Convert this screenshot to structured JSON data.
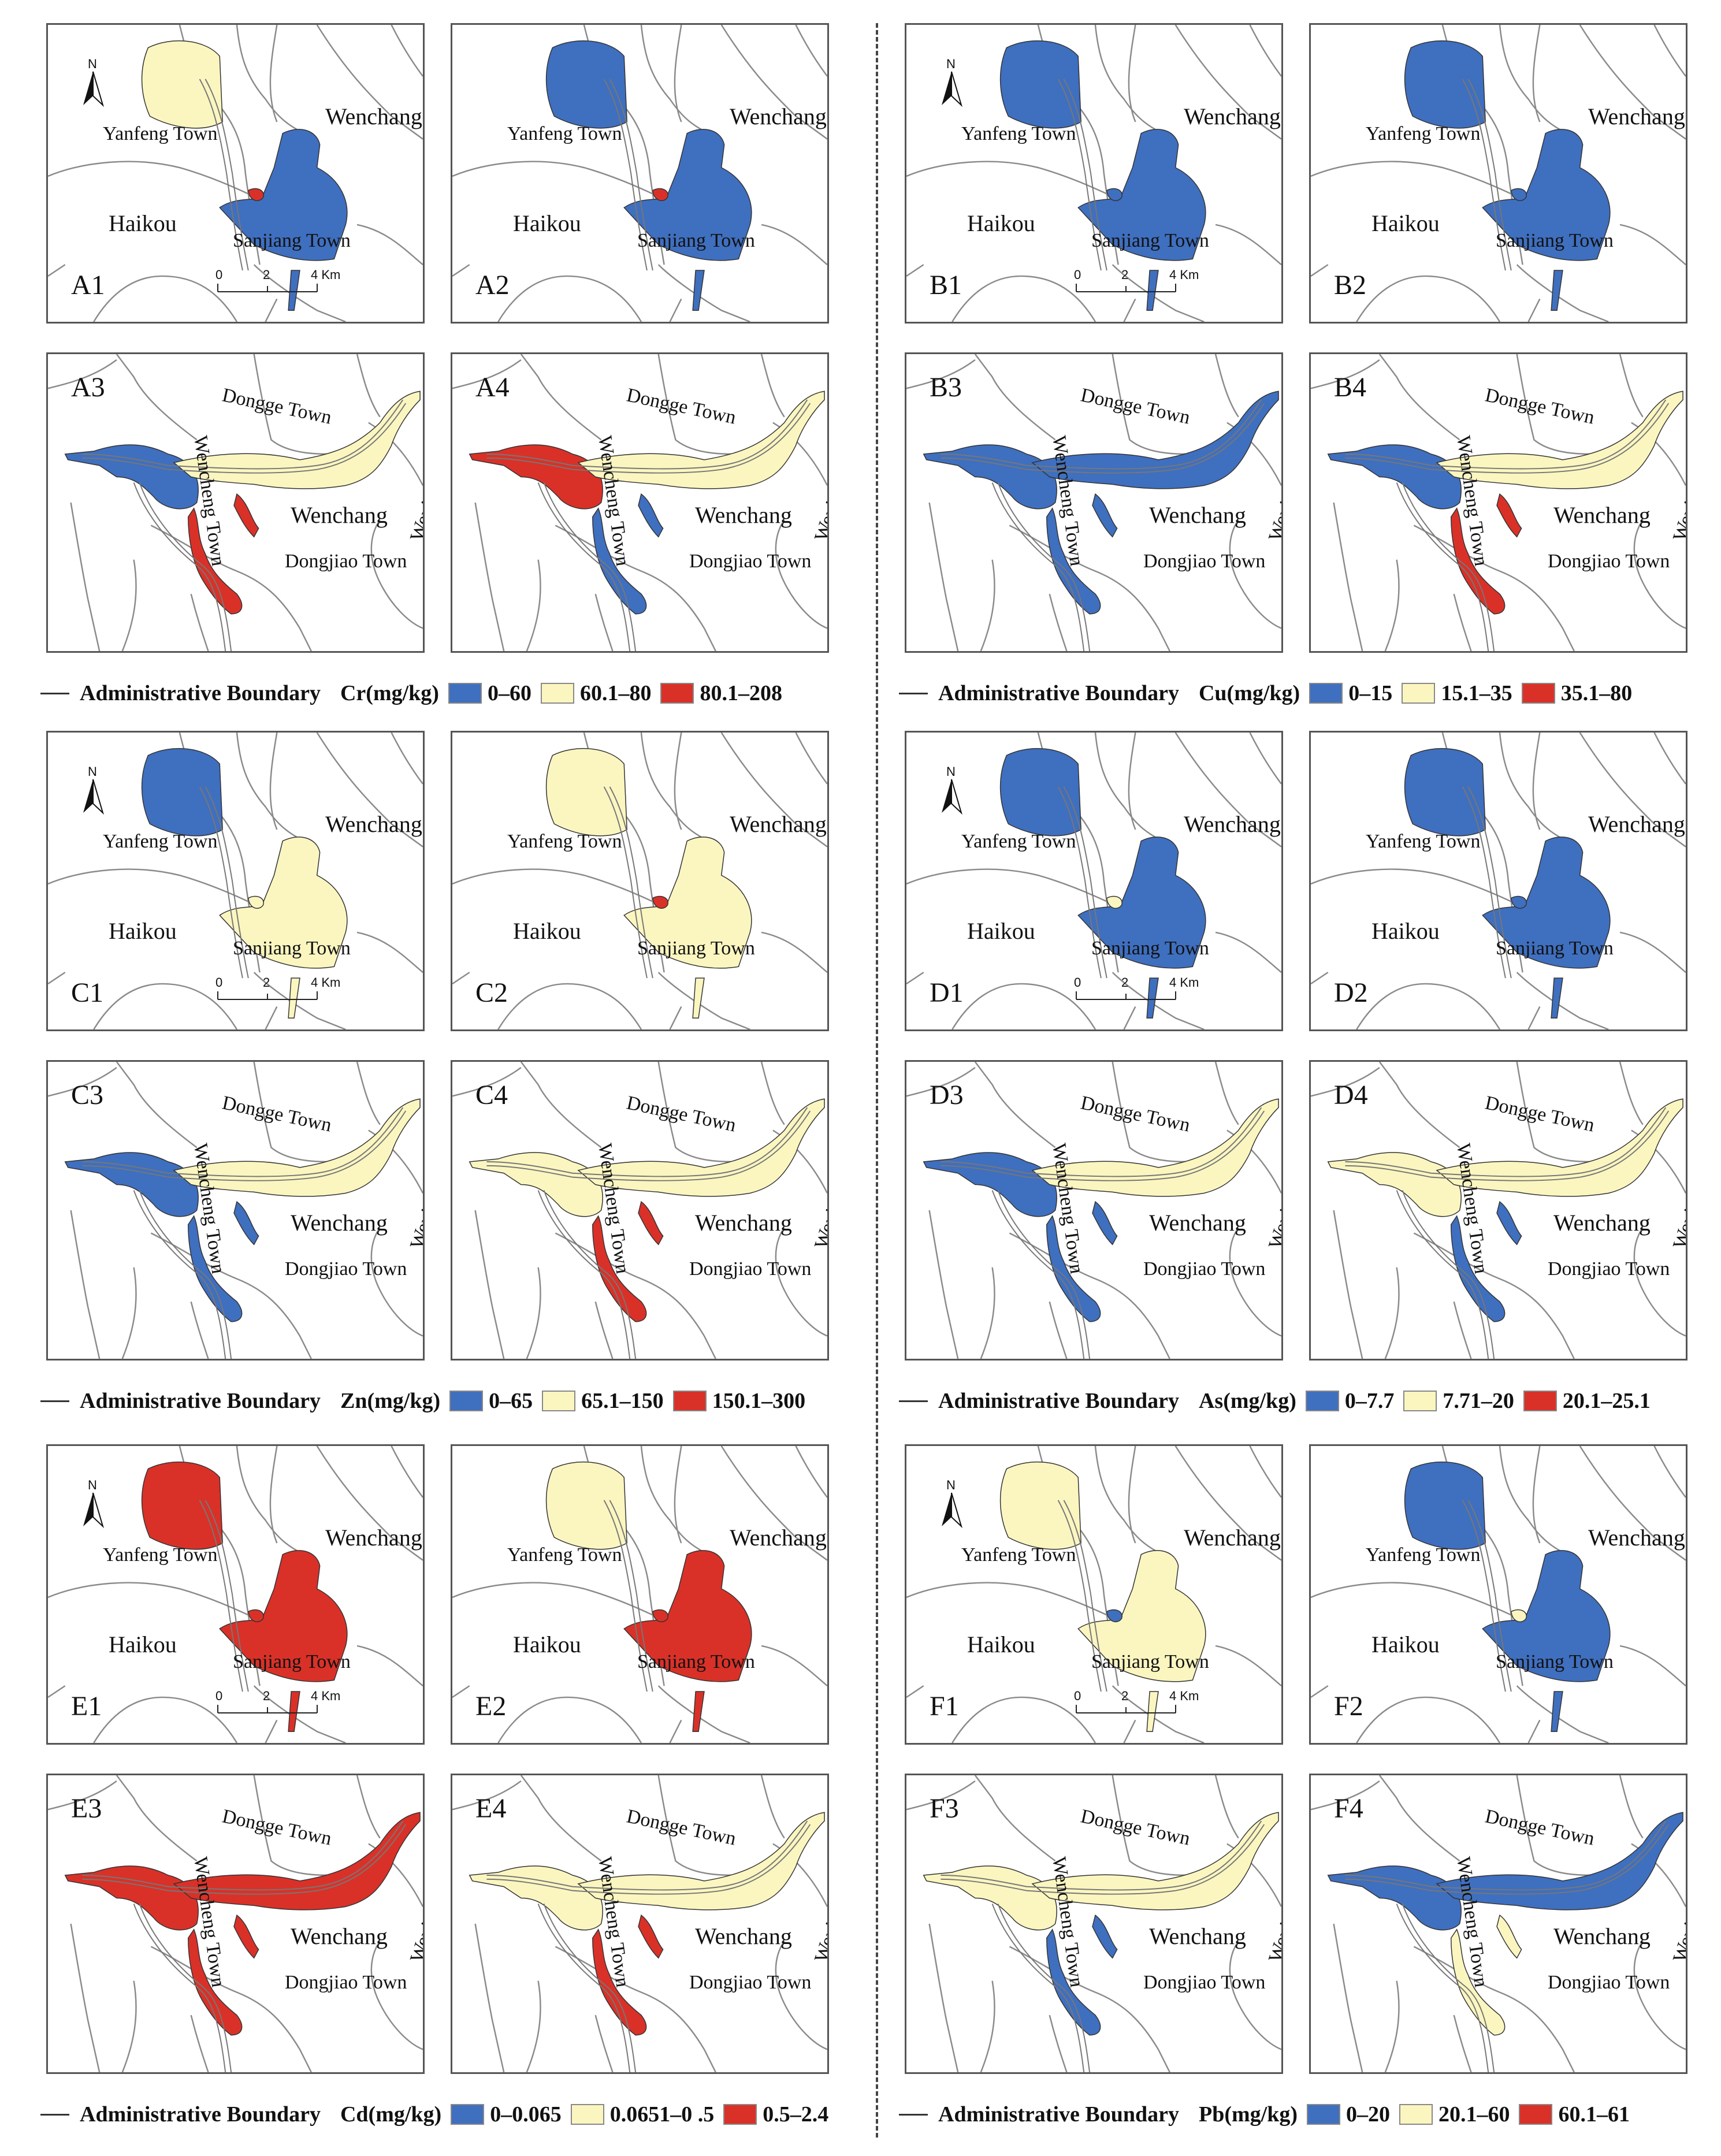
{
  "colors": {
    "low": "#3f6fbf",
    "mid": "#fbf6c0",
    "high": "#d93128",
    "boundary": "#8a8a8a"
  },
  "places": {
    "yanfeng": "Yanfeng Town",
    "wenchang": "Wenchang",
    "haikou": "Haikou",
    "sanjiang": "Sanjiang Town",
    "dongge": "Dongge Town",
    "wenjiao": "Wenjiao Town",
    "wencheng": "Wencheng Town",
    "dongjiao": "Dongjiao Town"
  },
  "scale": {
    "t0": "0",
    "t1": "2",
    "t2": "4 Km"
  },
  "north": "N",
  "legend_boundary": "Administrative Boundary",
  "groups": [
    {
      "id": "A",
      "title": "Cr(mg/kg)",
      "classes": [
        "0–60",
        "60.1–80",
        "80.1–208"
      ],
      "panels": [
        {
          "label": "A1",
          "fills": [
            "mid",
            "low",
            "high"
          ]
        },
        {
          "label": "A2",
          "fills": [
            "low",
            "low",
            "high"
          ]
        },
        {
          "label": "A3",
          "fills": [
            "low",
            "mid",
            "high"
          ]
        },
        {
          "label": "A4",
          "fills": [
            "high",
            "mid",
            "low"
          ]
        }
      ]
    },
    {
      "id": "B",
      "title": "Cu(mg/kg)",
      "classes": [
        "0–15",
        "15.1–35",
        "35.1–80"
      ],
      "panels": [
        {
          "label": "B1",
          "fills": [
            "low",
            "low",
            "low"
          ]
        },
        {
          "label": "B2",
          "fills": [
            "low",
            "low",
            "low"
          ]
        },
        {
          "label": "B3",
          "fills": [
            "low",
            "low",
            "low"
          ]
        },
        {
          "label": "B4",
          "fills": [
            "low",
            "mid",
            "high"
          ]
        }
      ]
    },
    {
      "id": "C",
      "title": "Zn(mg/kg)",
      "classes": [
        "0–65",
        "65.1–150",
        "150.1–300"
      ],
      "panels": [
        {
          "label": "C1",
          "fills": [
            "low",
            "mid",
            "mid"
          ]
        },
        {
          "label": "C2",
          "fills": [
            "mid",
            "mid",
            "high"
          ]
        },
        {
          "label": "C3",
          "fills": [
            "low",
            "mid",
            "low"
          ]
        },
        {
          "label": "C4",
          "fills": [
            "mid",
            "mid",
            "high"
          ]
        }
      ]
    },
    {
      "id": "D",
      "title": "As(mg/kg)",
      "classes": [
        "0–7.7",
        "7.71–20",
        "20.1–25.1"
      ],
      "panels": [
        {
          "label": "D1",
          "fills": [
            "low",
            "low",
            "mid"
          ]
        },
        {
          "label": "D2",
          "fills": [
            "low",
            "low",
            "low"
          ]
        },
        {
          "label": "D3",
          "fills": [
            "low",
            "mid",
            "low"
          ]
        },
        {
          "label": "D4",
          "fills": [
            "mid",
            "mid",
            "low"
          ]
        }
      ]
    },
    {
      "id": "E",
      "title": "Cd(mg/kg)",
      "classes": [
        "0–0.065",
        "0.0651–0 .5",
        "0.5–2.4"
      ],
      "panels": [
        {
          "label": "E1",
          "fills": [
            "high",
            "high",
            "high"
          ]
        },
        {
          "label": "E2",
          "fills": [
            "mid",
            "high",
            "high"
          ]
        },
        {
          "label": "E3",
          "fills": [
            "high",
            "high",
            "high"
          ]
        },
        {
          "label": "E4",
          "fills": [
            "mid",
            "mid",
            "high"
          ]
        }
      ]
    },
    {
      "id": "F",
      "title": "Pb(mg/kg)",
      "classes": [
        "0–20",
        "20.1–60",
        "60.1–61"
      ],
      "panels": [
        {
          "label": "F1",
          "fills": [
            "mid",
            "mid",
            "low"
          ]
        },
        {
          "label": "F2",
          "fills": [
            "low",
            "low",
            "mid"
          ]
        },
        {
          "label": "F3",
          "fills": [
            "mid",
            "mid",
            "low"
          ]
        },
        {
          "label": "F4",
          "fills": [
            "low",
            "low",
            "mid"
          ]
        }
      ]
    }
  ]
}
